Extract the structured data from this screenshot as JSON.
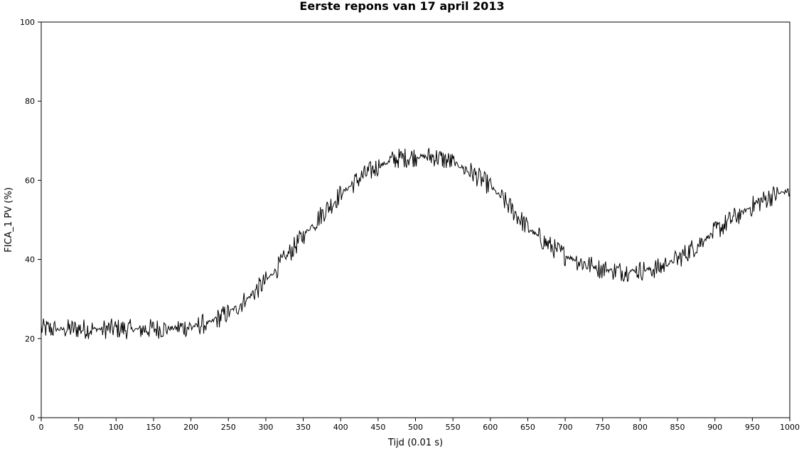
{
  "chart_data": {
    "type": "line",
    "title": "Eerste repons van 17 april 2013",
    "xlabel": "Tijd (0.01 s)",
    "ylabel": "FICA_1 PV (%)",
    "xlim": [
      0,
      1000
    ],
    "ylim": [
      0,
      100
    ],
    "xticks": [
      0,
      50,
      100,
      150,
      200,
      250,
      300,
      350,
      400,
      450,
      500,
      550,
      600,
      650,
      700,
      750,
      800,
      850,
      900,
      950,
      1000
    ],
    "yticks": [
      0,
      20,
      40,
      60,
      80,
      100
    ],
    "grid": false,
    "legend": "none",
    "line_color": "#000000",
    "series": [
      {
        "x": [
          0,
          25,
          50,
          75,
          100,
          125,
          150,
          175,
          200,
          225,
          250,
          275,
          300,
          325,
          350,
          375,
          400,
          425,
          450,
          475,
          500,
          525,
          550,
          575,
          600,
          625,
          650,
          675,
          700,
          725,
          750,
          775,
          800,
          825,
          850,
          875,
          900,
          925,
          950,
          975,
          1000
        ],
        "values": [
          22.5,
          22.3,
          22.5,
          22.4,
          22.5,
          22.3,
          22.5,
          22.6,
          23.0,
          24.0,
          26.5,
          30.0,
          34.5,
          40.0,
          46.0,
          51.5,
          56.5,
          60.5,
          63.5,
          65.5,
          66.0,
          66.0,
          64.5,
          62.0,
          58.5,
          53.5,
          48.0,
          44.0,
          41.0,
          39.0,
          37.5,
          37.0,
          37.2,
          37.8,
          40.0,
          43.5,
          47.0,
          50.5,
          53.5,
          56.0,
          57.5
        ]
      }
    ]
  }
}
